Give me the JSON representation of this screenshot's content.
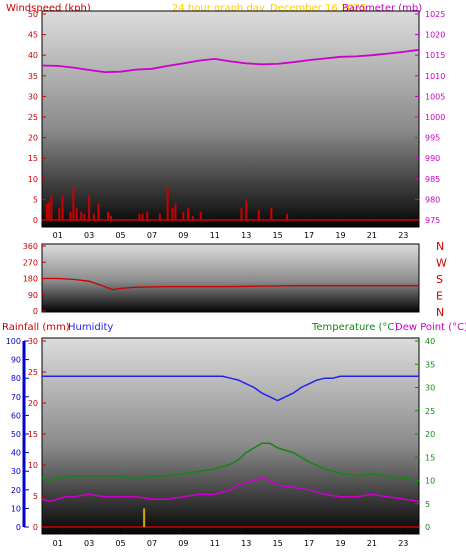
{
  "header": {
    "title": "24 hour graph day",
    "date": "December 16 2025"
  },
  "colors": {
    "wind": "#cc0000",
    "baro": "#cc00cc",
    "direction": "#cc0000",
    "rain": "#cc0000",
    "humidity": "#2222ee",
    "temperature": "#118811",
    "dewpoint": "#cc00cc",
    "rain_axis": "#0000cc",
    "frame": "#000000"
  },
  "chart_data": [
    {
      "id": "wind_baro",
      "type": "bar+line",
      "left_label": "Windspeed (kph)",
      "right_label": "Barometer (mb)",
      "x_ticks": [
        "01",
        "03",
        "05",
        "07",
        "09",
        "11",
        "13",
        "15",
        "17",
        "19",
        "21",
        "23"
      ],
      "xlim": [
        0,
        24
      ],
      "left_ylim": [
        0,
        50
      ],
      "left_ticks": [
        0,
        5,
        10,
        15,
        20,
        25,
        30,
        35,
        40,
        45,
        50
      ],
      "right_ylim": [
        975,
        1025
      ],
      "right_ticks": [
        975,
        980,
        985,
        990,
        995,
        1000,
        1005,
        1010,
        1015,
        1020,
        1025
      ],
      "wind": {
        "x": [
          0.3,
          0.45,
          0.6,
          1.1,
          1.3,
          1.8,
          2.0,
          2.2,
          2.5,
          2.7,
          3.0,
          3.3,
          3.6,
          4.2,
          4.4,
          6.2,
          6.4,
          6.7,
          7.5,
          8.0,
          8.3,
          8.5,
          9.0,
          9.3,
          9.6,
          10.1,
          12.7,
          13.0,
          13.8,
          14.6,
          15.6
        ],
        "values": [
          4,
          4.5,
          6,
          3,
          6,
          2,
          8,
          3,
          2,
          1.5,
          6,
          1.5,
          4,
          2,
          1,
          1.5,
          1.5,
          2,
          1.5,
          8,
          3,
          4,
          2,
          3,
          1,
          2,
          3,
          5,
          2.5,
          3,
          1.5
        ]
      },
      "baro": {
        "x": [
          0,
          1,
          2,
          3,
          4,
          5,
          6,
          7,
          8,
          9,
          10,
          11,
          12,
          13,
          14,
          15,
          16,
          17,
          18,
          19,
          20,
          21,
          22,
          23,
          24
        ],
        "values": [
          1012.5,
          1012.4,
          1012.0,
          1011.4,
          1010.9,
          1011.0,
          1011.5,
          1011.7,
          1012.4,
          1013.0,
          1013.7,
          1014.1,
          1013.5,
          1013.0,
          1012.8,
          1012.9,
          1013.3,
          1013.8,
          1014.2,
          1014.6,
          1014.7,
          1015.0,
          1015.4,
          1015.8,
          1016.3
        ]
      }
    },
    {
      "id": "direction",
      "type": "line",
      "yticks": [
        0,
        90,
        180,
        270,
        360
      ],
      "ylim": [
        0,
        360
      ],
      "compass": [
        "N",
        "W",
        "S",
        "E",
        "N"
      ],
      "x": [
        0,
        1,
        2,
        3,
        3.5,
        4,
        4.5,
        5,
        6,
        8,
        10,
        12,
        14,
        16,
        18,
        20,
        22,
        24
      ],
      "values": [
        180,
        180,
        175,
        165,
        150,
        135,
        118,
        125,
        132,
        135,
        135,
        135,
        138,
        140,
        140,
        140,
        140,
        140
      ]
    },
    {
      "id": "rain_hum_temp",
      "type": "line+bar",
      "labels": {
        "rainfall": "Rainfall (mm)",
        "humidity": "Humidity",
        "temperature": "Temperature (°C)",
        "dewpoint": "Dew Point (°C)"
      },
      "x_ticks": [
        "01",
        "03",
        "05",
        "07",
        "09",
        "11",
        "13",
        "15",
        "17",
        "19",
        "21",
        "23"
      ],
      "xlim": [
        0,
        24
      ],
      "humidity_ticks": [
        0,
        10,
        20,
        30,
        40,
        50,
        60,
        70,
        80,
        90,
        100
      ],
      "humidity_ylim": [
        0,
        100
      ],
      "rainfall_ticks": [
        0,
        5,
        10,
        15,
        20,
        25,
        30
      ],
      "rainfall_ylim": [
        0,
        30
      ],
      "temp_ticks": [
        0,
        5,
        10,
        15,
        20,
        25,
        30,
        35,
        40
      ],
      "temp_ylim": [
        0,
        40
      ],
      "humidity": {
        "x": [
          0,
          2,
          4,
          6,
          8,
          10,
          11.5,
          12,
          12.5,
          13,
          13.5,
          14,
          14.5,
          15,
          15.5,
          16,
          16.5,
          17,
          17.5,
          18,
          18.5,
          19,
          20,
          22,
          24
        ],
        "values": [
          81,
          81,
          81,
          81,
          81,
          81,
          81,
          80,
          79,
          77,
          75,
          72,
          70,
          68,
          70,
          72,
          75,
          77,
          79,
          80,
          80,
          81,
          81,
          81,
          81
        ]
      },
      "temperature": {
        "x": [
          0,
          0.5,
          1,
          2,
          3,
          4,
          5,
          6,
          7,
          8,
          9,
          10,
          11,
          12,
          12.5,
          13,
          13.5,
          14,
          14.5,
          15,
          16,
          17,
          18,
          19,
          20,
          21,
          22,
          23,
          24
        ],
        "values": [
          10.5,
          10,
          10.5,
          11,
          11,
          11,
          11,
          10.5,
          11,
          11,
          11.5,
          12,
          12.5,
          13.5,
          14.5,
          16,
          17,
          18,
          18,
          17,
          16,
          14,
          12.5,
          11.5,
          11,
          11.5,
          11,
          10.5,
          10
        ]
      },
      "dewpoint": {
        "x": [
          0,
          0.5,
          1,
          1.5,
          2,
          3,
          4,
          5,
          6,
          7,
          8,
          9,
          10,
          11,
          12,
          12.5,
          13,
          13.5,
          14,
          14.5,
          15,
          16,
          17,
          18,
          19,
          20,
          21,
          22,
          23,
          24
        ],
        "values": [
          6,
          5.5,
          6,
          6.5,
          6.5,
          7,
          6.5,
          6.5,
          6.5,
          6,
          6,
          6.5,
          7,
          7,
          8,
          9,
          9.5,
          10,
          10.5,
          10,
          9,
          8.5,
          8,
          7,
          6.5,
          6.5,
          7,
          6.5,
          6,
          5.5
        ]
      },
      "rainfall": {
        "x": [
          6.5
        ],
        "values": [
          3
        ]
      }
    }
  ]
}
